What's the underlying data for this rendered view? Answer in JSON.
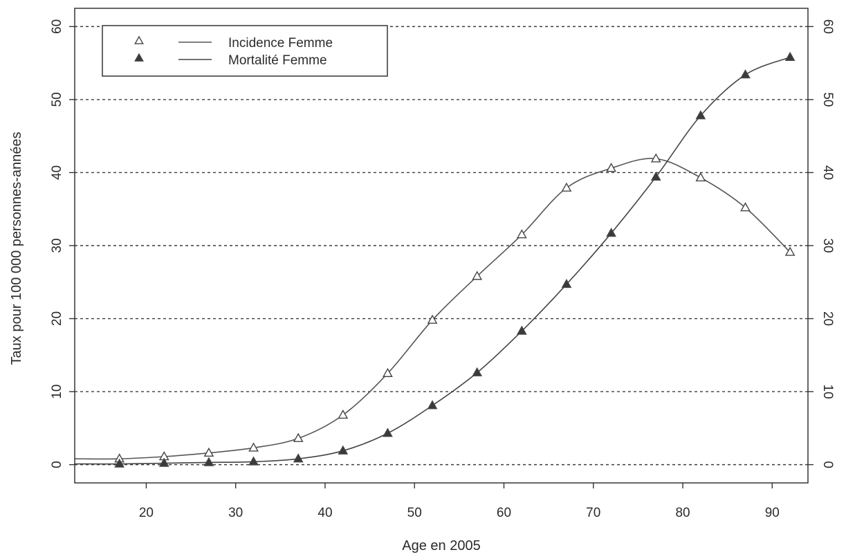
{
  "chart_data": {
    "type": "line",
    "xlabel": "Age en 2005",
    "ylabel": "Taux pour 100 000 personnes-années",
    "xlim": [
      12,
      94
    ],
    "ylim": [
      -2.5,
      62.5
    ],
    "x_ticks": [
      20,
      30,
      40,
      50,
      60,
      70,
      80,
      90
    ],
    "y_ticks": [
      0,
      10,
      20,
      30,
      40,
      50,
      60
    ],
    "y_ticks_right": [
      0,
      10,
      20,
      30,
      40,
      50,
      60
    ],
    "grid": "horizontal dashed",
    "legend_position": "top-left",
    "x": [
      17,
      22,
      27,
      32,
      37,
      42,
      47,
      52,
      57,
      62,
      67,
      72,
      77,
      82,
      87,
      92
    ],
    "series": [
      {
        "name": "Incidence Femme",
        "marker": "open-triangle",
        "color": "#555555",
        "values": [
          0.8,
          1.1,
          1.6,
          2.3,
          3.6,
          6.8,
          12.5,
          19.8,
          25.8,
          31.5,
          37.9,
          40.6,
          41.9,
          39.3,
          35.2,
          29.1
        ]
      },
      {
        "name": "Mortalité Femme",
        "marker": "filled-triangle",
        "color": "#444444",
        "values": [
          0.1,
          0.2,
          0.3,
          0.4,
          0.8,
          1.9,
          4.3,
          8.1,
          12.6,
          18.3,
          24.7,
          31.7,
          39.4,
          47.8,
          53.4,
          55.8
        ]
      }
    ]
  }
}
